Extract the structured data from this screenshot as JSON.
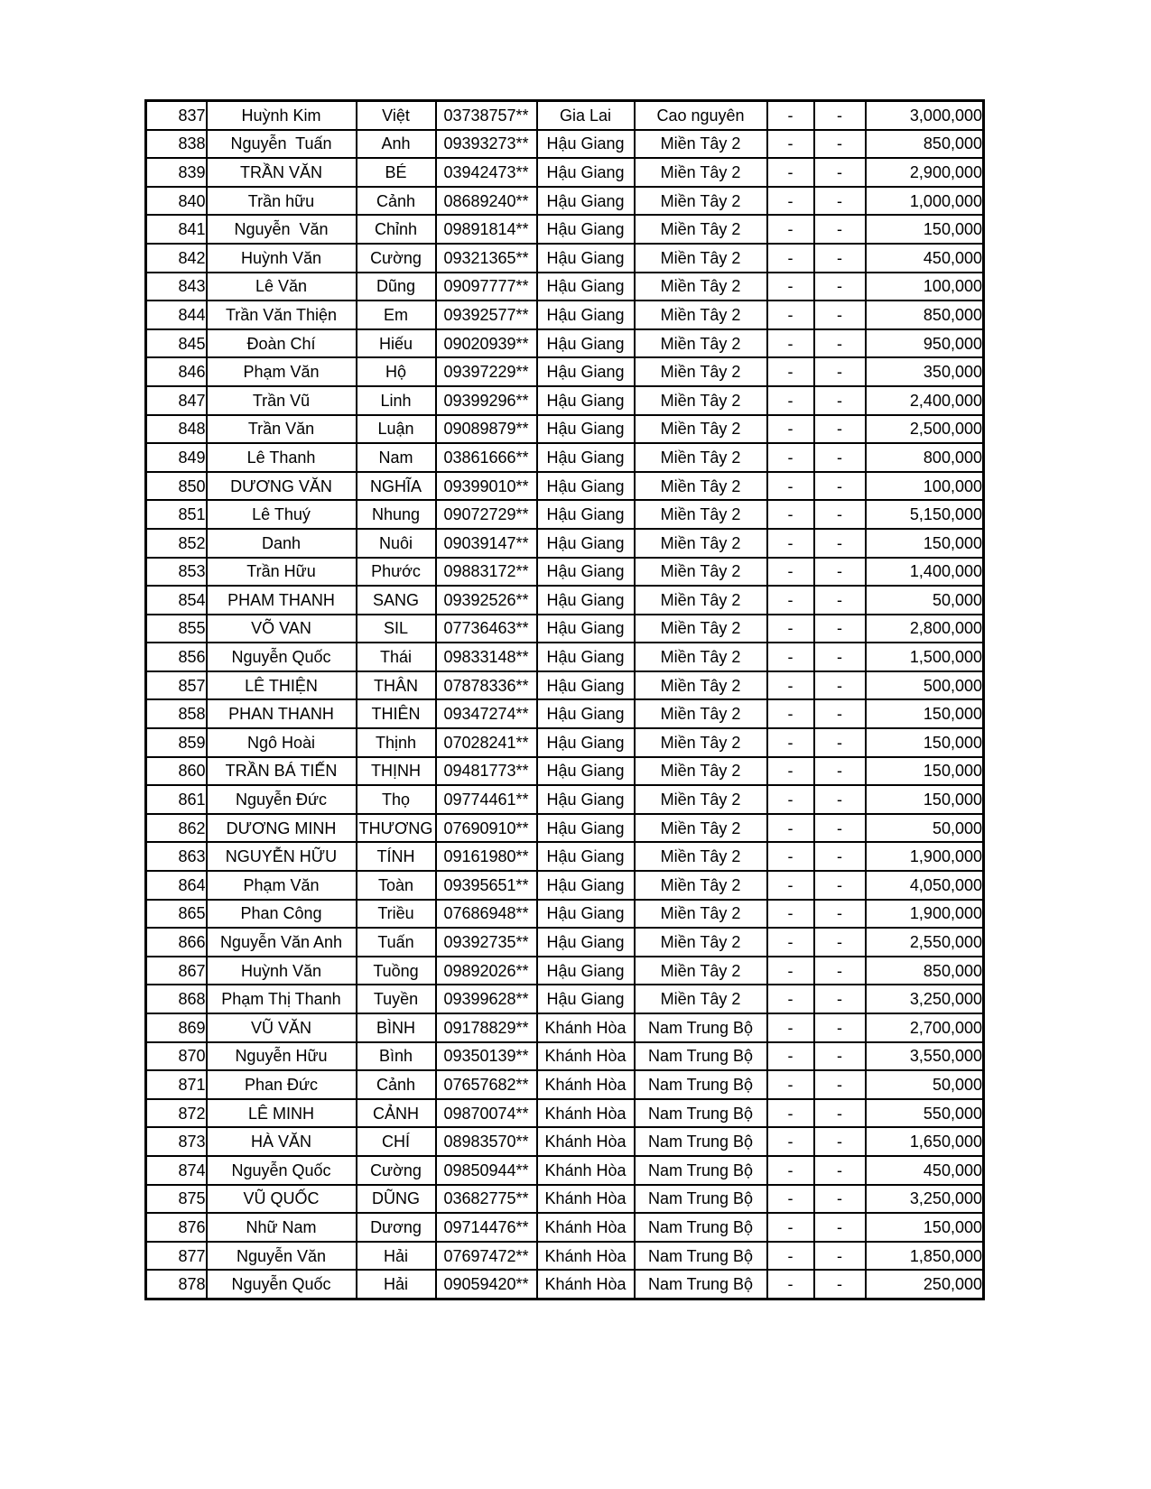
{
  "page": {
    "background_color": "#ffffff",
    "text_color": "#000000",
    "border_color": "#000000"
  },
  "table": {
    "rows": [
      {
        "index": "837",
        "family_name": "Huỳnh Kim",
        "given_name": "Việt",
        "phone": "03738757**",
        "province": "Gia Lai",
        "region": "Cao nguyên",
        "dash1": "-",
        "dash2": "-",
        "amount": "3,000,000"
      },
      {
        "index": "838",
        "family_name": "Nguyễn  Tuấn",
        "given_name": "Anh",
        "phone": "09393273**",
        "province": "Hậu Giang",
        "region": "Miền Tây 2",
        "dash1": "-",
        "dash2": "-",
        "amount": "850,000"
      },
      {
        "index": "839",
        "family_name": "TRẦN VĂN",
        "given_name": "BÉ",
        "phone": "03942473**",
        "province": "Hậu Giang",
        "region": "Miền Tây 2",
        "dash1": "-",
        "dash2": "-",
        "amount": "2,900,000"
      },
      {
        "index": "840",
        "family_name": "Trần hữu",
        "given_name": "Cảnh",
        "phone": "08689240**",
        "province": "Hậu Giang",
        "region": "Miền Tây 2",
        "dash1": "-",
        "dash2": "-",
        "amount": "1,000,000"
      },
      {
        "index": "841",
        "family_name": "Nguyễn  Văn",
        "given_name": "Chỉnh",
        "phone": "09891814**",
        "province": "Hậu Giang",
        "region": "Miền Tây 2",
        "dash1": "-",
        "dash2": "-",
        "amount": "150,000"
      },
      {
        "index": "842",
        "family_name": "Huỳnh Văn",
        "given_name": "Cường",
        "phone": "09321365**",
        "province": "Hậu Giang",
        "region": "Miền Tây 2",
        "dash1": "-",
        "dash2": "-",
        "amount": "450,000"
      },
      {
        "index": "843",
        "family_name": "Lê Văn",
        "given_name": "Dũng",
        "phone": "09097777**",
        "province": "Hậu Giang",
        "region": "Miền Tây 2",
        "dash1": "-",
        "dash2": "-",
        "amount": "100,000"
      },
      {
        "index": "844",
        "family_name": "Trần Văn Thiện",
        "given_name": "Em",
        "phone": "09392577**",
        "province": "Hậu Giang",
        "region": "Miền Tây 2",
        "dash1": "-",
        "dash2": "-",
        "amount": "850,000"
      },
      {
        "index": "845",
        "family_name": "Đoàn Chí",
        "given_name": "Hiếu",
        "phone": "09020939**",
        "province": "Hậu Giang",
        "region": "Miền Tây 2",
        "dash1": "-",
        "dash2": "-",
        "amount": "950,000"
      },
      {
        "index": "846",
        "family_name": "Phạm Văn",
        "given_name": "Hộ",
        "phone": "09397229**",
        "province": "Hậu Giang",
        "region": "Miền Tây 2",
        "dash1": "-",
        "dash2": "-",
        "amount": "350,000"
      },
      {
        "index": "847",
        "family_name": "Trần Vũ",
        "given_name": "Linh",
        "phone": "09399296**",
        "province": "Hậu Giang",
        "region": "Miền Tây 2",
        "dash1": "-",
        "dash2": "-",
        "amount": "2,400,000"
      },
      {
        "index": "848",
        "family_name": "Trần Văn",
        "given_name": "Luận",
        "phone": "09089879**",
        "province": "Hậu Giang",
        "region": "Miền Tây 2",
        "dash1": "-",
        "dash2": "-",
        "amount": "2,500,000"
      },
      {
        "index": "849",
        "family_name": "Lê Thanh",
        "given_name": "Nam",
        "phone": "03861666**",
        "province": "Hậu Giang",
        "region": "Miền Tây 2",
        "dash1": "-",
        "dash2": "-",
        "amount": "800,000"
      },
      {
        "index": "850",
        "family_name": "DƯƠNG VĂN",
        "given_name": "NGHĨA",
        "phone": "09399010**",
        "province": "Hậu Giang",
        "region": "Miền Tây 2",
        "dash1": "-",
        "dash2": "-",
        "amount": "100,000"
      },
      {
        "index": "851",
        "family_name": "Lê Thuý",
        "given_name": "Nhung",
        "phone": "09072729**",
        "province": "Hậu Giang",
        "region": "Miền Tây 2",
        "dash1": "-",
        "dash2": "-",
        "amount": "5,150,000"
      },
      {
        "index": "852",
        "family_name": "Danh",
        "given_name": "Nuôi",
        "phone": "09039147**",
        "province": "Hậu Giang",
        "region": "Miền Tây 2",
        "dash1": "-",
        "dash2": "-",
        "amount": "150,000"
      },
      {
        "index": "853",
        "family_name": "Trần Hữu",
        "given_name": "Phước",
        "phone": "09883172**",
        "province": "Hậu Giang",
        "region": "Miền Tây 2",
        "dash1": "-",
        "dash2": "-",
        "amount": "1,400,000"
      },
      {
        "index": "854",
        "family_name": "PHAM THANH",
        "given_name": "SANG",
        "phone": "09392526**",
        "province": "Hậu Giang",
        "region": "Miền Tây 2",
        "dash1": "-",
        "dash2": "-",
        "amount": "50,000"
      },
      {
        "index": "855",
        "family_name": "VÕ VAN",
        "given_name": "SIL",
        "phone": "07736463**",
        "province": "Hậu Giang",
        "region": "Miền Tây 2",
        "dash1": "-",
        "dash2": "-",
        "amount": "2,800,000"
      },
      {
        "index": "856",
        "family_name": "Nguyễn Quốc",
        "given_name": "Thái",
        "phone": "09833148**",
        "province": "Hậu Giang",
        "region": "Miền Tây 2",
        "dash1": "-",
        "dash2": "-",
        "amount": "1,500,000"
      },
      {
        "index": "857",
        "family_name": "LÊ THIỆN",
        "given_name": "THÂN",
        "phone": "07878336**",
        "province": "Hậu Giang",
        "region": "Miền Tây 2",
        "dash1": "-",
        "dash2": "-",
        "amount": "500,000"
      },
      {
        "index": "858",
        "family_name": "PHAN THANH",
        "given_name": "THIÊN",
        "phone": "09347274**",
        "province": "Hậu Giang",
        "region": "Miền Tây 2",
        "dash1": "-",
        "dash2": "-",
        "amount": "150,000"
      },
      {
        "index": "859",
        "family_name": "Ngô Hoài",
        "given_name": "Thịnh",
        "phone": "07028241**",
        "province": "Hậu Giang",
        "region": "Miền Tây 2",
        "dash1": "-",
        "dash2": "-",
        "amount": "150,000"
      },
      {
        "index": "860",
        "family_name": "TRẦN BÁ TIẾN",
        "given_name": "THỊNH",
        "phone": "09481773**",
        "province": "Hậu Giang",
        "region": "Miền Tây 2",
        "dash1": "-",
        "dash2": "-",
        "amount": "150,000"
      },
      {
        "index": "861",
        "family_name": "Nguyễn Đức",
        "given_name": "Thọ",
        "phone": "09774461**",
        "province": "Hậu Giang",
        "region": "Miền Tây 2",
        "dash1": "-",
        "dash2": "-",
        "amount": "150,000"
      },
      {
        "index": "862",
        "family_name": "DƯƠNG MINH",
        "given_name": "THƯƠNG",
        "phone": "07690910**",
        "province": "Hậu Giang",
        "region": "Miền Tây 2",
        "dash1": "-",
        "dash2": "-",
        "amount": "50,000"
      },
      {
        "index": "863",
        "family_name": "NGUYỄN HỮU",
        "given_name": "TÍNH",
        "phone": "09161980**",
        "province": "Hậu Giang",
        "region": "Miền Tây 2",
        "dash1": "-",
        "dash2": "-",
        "amount": "1,900,000"
      },
      {
        "index": "864",
        "family_name": "Phạm Văn",
        "given_name": "Toàn",
        "phone": "09395651**",
        "province": "Hậu Giang",
        "region": "Miền Tây 2",
        "dash1": "-",
        "dash2": "-",
        "amount": "4,050,000"
      },
      {
        "index": "865",
        "family_name": "Phan Công",
        "given_name": "Triều",
        "phone": "07686948**",
        "province": "Hậu Giang",
        "region": "Miền Tây 2",
        "dash1": "-",
        "dash2": "-",
        "amount": "1,900,000"
      },
      {
        "index": "866",
        "family_name": "Nguyễn Văn Anh",
        "given_name": "Tuấn",
        "phone": "09392735**",
        "province": "Hậu Giang",
        "region": "Miền Tây 2",
        "dash1": "-",
        "dash2": "-",
        "amount": "2,550,000"
      },
      {
        "index": "867",
        "family_name": "Huỳnh Văn",
        "given_name": "Tuồng",
        "phone": "09892026**",
        "province": "Hậu Giang",
        "region": "Miền Tây 2",
        "dash1": "-",
        "dash2": "-",
        "amount": "850,000"
      },
      {
        "index": "868",
        "family_name": "Phạm Thị Thanh",
        "given_name": "Tuyền",
        "phone": "09399628**",
        "province": "Hậu Giang",
        "region": "Miền Tây 2",
        "dash1": "-",
        "dash2": "-",
        "amount": "3,250,000"
      },
      {
        "index": "869",
        "family_name": "VŨ VĂN",
        "given_name": "BÌNH",
        "phone": "09178829**",
        "province": "Khánh Hòa",
        "region": "Nam Trung Bộ",
        "dash1": "-",
        "dash2": "-",
        "amount": "2,700,000"
      },
      {
        "index": "870",
        "family_name": "Nguyễn Hữu",
        "given_name": "Bình",
        "phone": "09350139**",
        "province": "Khánh Hòa",
        "region": "Nam Trung Bộ",
        "dash1": "-",
        "dash2": "-",
        "amount": "3,550,000"
      },
      {
        "index": "871",
        "family_name": "Phan Đức",
        "given_name": "Cảnh",
        "phone": "07657682**",
        "province": "Khánh Hòa",
        "region": "Nam Trung Bộ",
        "dash1": "-",
        "dash2": "-",
        "amount": "50,000"
      },
      {
        "index": "872",
        "family_name": "LÊ MINH",
        "given_name": "CẢNH",
        "phone": "09870074**",
        "province": "Khánh Hòa",
        "region": "Nam Trung Bộ",
        "dash1": "-",
        "dash2": "-",
        "amount": "550,000"
      },
      {
        "index": "873",
        "family_name": "HÀ VĂN",
        "given_name": "CHÍ",
        "phone": "08983570**",
        "province": "Khánh Hòa",
        "region": "Nam Trung Bộ",
        "dash1": "-",
        "dash2": "-",
        "amount": "1,650,000"
      },
      {
        "index": "874",
        "family_name": "Nguyễn Quốc",
        "given_name": "Cường",
        "phone": "09850944**",
        "province": "Khánh Hòa",
        "region": "Nam Trung Bộ",
        "dash1": "-",
        "dash2": "-",
        "amount": "450,000"
      },
      {
        "index": "875",
        "family_name": "VŨ QUỐC",
        "given_name": "DŨNG",
        "phone": "03682775**",
        "province": "Khánh Hòa",
        "region": "Nam Trung Bộ",
        "dash1": "-",
        "dash2": "-",
        "amount": "3,250,000"
      },
      {
        "index": "876",
        "family_name": "Nhữ Nam",
        "given_name": "Dương",
        "phone": "09714476**",
        "province": "Khánh Hòa",
        "region": "Nam Trung Bộ",
        "dash1": "-",
        "dash2": "-",
        "amount": "150,000"
      },
      {
        "index": "877",
        "family_name": "Nguyễn Văn",
        "given_name": "Hải",
        "phone": "07697472**",
        "province": "Khánh Hòa",
        "region": "Nam Trung Bộ",
        "dash1": "-",
        "dash2": "-",
        "amount": "1,850,000"
      },
      {
        "index": "878",
        "family_name": "Nguyễn Quốc",
        "given_name": "Hải",
        "phone": "09059420**",
        "province": "Khánh Hòa",
        "region": "Nam Trung Bộ",
        "dash1": "-",
        "dash2": "-",
        "amount": "250,000"
      }
    ]
  }
}
